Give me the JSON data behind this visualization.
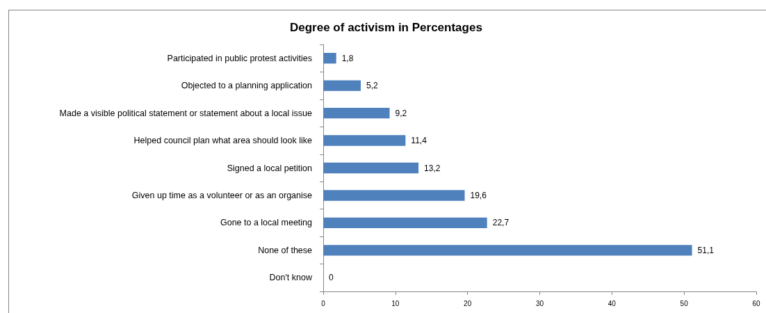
{
  "chart_data": {
    "type": "bar",
    "orientation": "horizontal",
    "title": "Degree of activism in Percentages",
    "categories": [
      "Participated in public protest activities",
      "Objected to a planning application",
      "Made a visible political statement or statement about a local issue",
      "Helped council plan what area should look like",
      "Signed a local petition",
      "Given up time as a volunteer or as an organise",
      "Gone to a local meeting",
      "None of these",
      "Don't know"
    ],
    "values": [
      1.8,
      5.2,
      9.2,
      11.4,
      13.2,
      19.6,
      22.7,
      51.1,
      0
    ],
    "value_labels": [
      "1,8",
      "5,2",
      "9,2",
      "11,4",
      "13,2",
      "19,6",
      "22,7",
      "51,1",
      "0"
    ],
    "color": "#4f81bd",
    "xlim": [
      0,
      60
    ],
    "xticks": [
      0,
      10,
      20,
      30,
      40,
      50,
      60
    ]
  }
}
